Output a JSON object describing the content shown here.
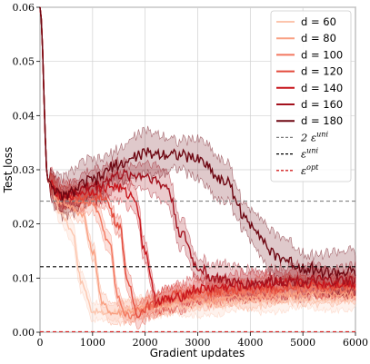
{
  "chart_data": {
    "type": "line",
    "xlabel": "Gradient updates",
    "ylabel": "Test loss",
    "xlim": [
      0,
      6000
    ],
    "ylim": [
      0,
      0.06
    ],
    "xticks": [
      0,
      1000,
      2000,
      3000,
      4000,
      5000,
      6000
    ],
    "xtick_labels": [
      "0",
      "1000",
      "2000",
      "3000",
      "4000",
      "5000",
      "6000"
    ],
    "yticks": [
      0,
      0.01,
      0.02,
      0.03,
      0.04,
      0.05,
      0.06
    ],
    "ytick_labels": [
      "0.00",
      "0.01",
      "0.02",
      "0.03",
      "0.04",
      "0.05",
      "0.06"
    ],
    "grid": true,
    "legend_position": "top-right",
    "series": [
      {
        "name": "d = 60",
        "color": "#fcc5ad",
        "points": [
          [
            0,
            0.06
          ],
          [
            150,
            0.028
          ],
          [
            400,
            0.022
          ],
          [
            600,
            0.019
          ],
          [
            800,
            0.009
          ],
          [
            1000,
            0.004
          ],
          [
            1200,
            0.0035
          ],
          [
            1500,
            0.004
          ],
          [
            2000,
            0.0045
          ],
          [
            3000,
            0.005
          ],
          [
            4000,
            0.0055
          ],
          [
            5000,
            0.006
          ],
          [
            6000,
            0.006
          ]
        ],
        "band": 0.002
      },
      {
        "name": "d = 80",
        "color": "#f9a082",
        "points": [
          [
            0,
            0.06
          ],
          [
            150,
            0.028
          ],
          [
            400,
            0.024
          ],
          [
            800,
            0.022
          ],
          [
            1000,
            0.015
          ],
          [
            1200,
            0.005
          ],
          [
            1400,
            0.0035
          ],
          [
            1700,
            0.004
          ],
          [
            2200,
            0.005
          ],
          [
            3000,
            0.006
          ],
          [
            4000,
            0.0065
          ],
          [
            5000,
            0.007
          ],
          [
            6000,
            0.007
          ]
        ],
        "band": 0.002
      },
      {
        "name": "d = 100",
        "color": "#f3775f",
        "points": [
          [
            0,
            0.06
          ],
          [
            150,
            0.028
          ],
          [
            400,
            0.025
          ],
          [
            1000,
            0.024
          ],
          [
            1300,
            0.017
          ],
          [
            1500,
            0.006
          ],
          [
            1650,
            0.003
          ],
          [
            1900,
            0.004
          ],
          [
            2400,
            0.006
          ],
          [
            3200,
            0.007
          ],
          [
            4000,
            0.0075
          ],
          [
            5000,
            0.008
          ],
          [
            6000,
            0.008
          ]
        ],
        "band": 0.002
      },
      {
        "name": "d = 120",
        "color": "#e34a3b",
        "points": [
          [
            0,
            0.06
          ],
          [
            150,
            0.028
          ],
          [
            400,
            0.025
          ],
          [
            1200,
            0.025
          ],
          [
            1500,
            0.02
          ],
          [
            1700,
            0.008
          ],
          [
            1850,
            0.0035
          ],
          [
            2100,
            0.005
          ],
          [
            2600,
            0.007
          ],
          [
            3400,
            0.0075
          ],
          [
            4200,
            0.008
          ],
          [
            5000,
            0.0085
          ],
          [
            6000,
            0.0085
          ]
        ],
        "band": 0.0022
      },
      {
        "name": "d = 140",
        "color": "#c7151c",
        "points": [
          [
            0,
            0.06
          ],
          [
            150,
            0.028
          ],
          [
            400,
            0.025
          ],
          [
            900,
            0.026
          ],
          [
            1400,
            0.027
          ],
          [
            1800,
            0.025
          ],
          [
            2000,
            0.015
          ],
          [
            2200,
            0.006
          ],
          [
            2500,
            0.006
          ],
          [
            3000,
            0.008
          ],
          [
            3800,
            0.0085
          ],
          [
            4600,
            0.009
          ],
          [
            6000,
            0.009
          ]
        ],
        "band": 0.0025
      },
      {
        "name": "d = 160",
        "color": "#a3111d",
        "points": [
          [
            0,
            0.06
          ],
          [
            150,
            0.028
          ],
          [
            400,
            0.025
          ],
          [
            1000,
            0.027
          ],
          [
            1500,
            0.029
          ],
          [
            2000,
            0.029
          ],
          [
            2400,
            0.027
          ],
          [
            2700,
            0.018
          ],
          [
            3000,
            0.012
          ],
          [
            3300,
            0.01
          ],
          [
            3800,
            0.009
          ],
          [
            4500,
            0.0095
          ],
          [
            6000,
            0.0095
          ]
        ],
        "band": 0.003
      },
      {
        "name": "d = 180",
        "color": "#6e0712",
        "points": [
          [
            0,
            0.06
          ],
          [
            150,
            0.028
          ],
          [
            400,
            0.025
          ],
          [
            1000,
            0.028
          ],
          [
            1500,
            0.031
          ],
          [
            2000,
            0.033
          ],
          [
            2500,
            0.033
          ],
          [
            3000,
            0.032
          ],
          [
            3500,
            0.028
          ],
          [
            4000,
            0.02
          ],
          [
            4500,
            0.014
          ],
          [
            5000,
            0.012
          ],
          [
            5500,
            0.011
          ],
          [
            6000,
            0.011
          ]
        ],
        "band": 0.004
      }
    ],
    "reference_lines": [
      {
        "name": "2 ε",
        "superscript": "uni",
        "value": 0.0242,
        "color": "#808080",
        "style": "dashed"
      },
      {
        "name": "ε",
        "superscript": "uni",
        "value": 0.0121,
        "color": "#000000",
        "style": "dashed"
      },
      {
        "name": "ε",
        "superscript": "opt",
        "value": 0.0001,
        "color": "#d42020",
        "style": "dashed"
      }
    ]
  }
}
